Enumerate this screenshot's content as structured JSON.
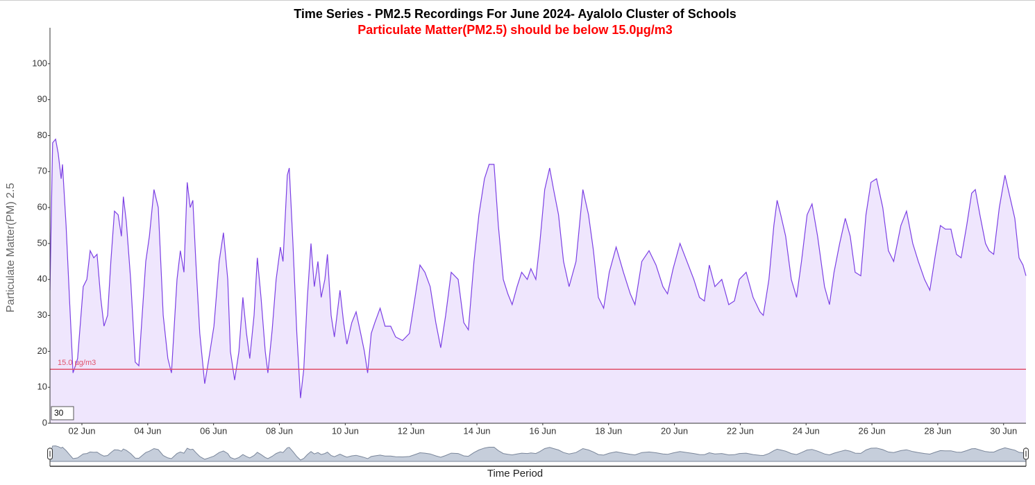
{
  "chart_data": {
    "type": "area",
    "title": "Time Series - PM2.5 Recordings For June 2024- Ayalolo Cluster of Schools",
    "subtitle": "Particulate Matter(PM2.5) should be below 15.0µg/m3",
    "y_label": "Particulate Matter(PM) 2.5",
    "x_label": "Time Period",
    "zoom_input": "30",
    "color": "#7b3fe4",
    "fill": "#efe6fd",
    "threshold": 15,
    "threshold_label": "15.0 µg/m3",
    "threshold_color": "#e0506a",
    "xlim": [
      1.03,
      30.68
    ],
    "ylim": [
      0,
      110
    ],
    "yticks": [
      0,
      10,
      20,
      30,
      40,
      50,
      60,
      70,
      80,
      90,
      100
    ],
    "xticks": [
      {
        "value": 2,
        "label": "02 Jun"
      },
      {
        "value": 4,
        "label": "04 Jun"
      },
      {
        "value": 6,
        "label": "06 Jun"
      },
      {
        "value": 8,
        "label": "08 Jun"
      },
      {
        "value": 10,
        "label": "10 Jun"
      },
      {
        "value": 12,
        "label": "12 Jun"
      },
      {
        "value": 14,
        "label": "14 Jun"
      },
      {
        "value": 16,
        "label": "16 Jun"
      },
      {
        "value": 18,
        "label": "18 Jun"
      },
      {
        "value": 20,
        "label": "20 Jun"
      },
      {
        "value": 22,
        "label": "22 Jun"
      },
      {
        "value": 24,
        "label": "24 Jun"
      },
      {
        "value": 26,
        "label": "26 Jun"
      },
      {
        "value": 28,
        "label": "28 Jun"
      },
      {
        "value": 30,
        "label": "30 Jun"
      }
    ],
    "x": [
      1.03,
      1.11,
      1.2,
      1.28,
      1.37,
      1.41,
      1.52,
      1.62,
      1.73,
      1.87,
      2.04,
      2.15,
      2.25,
      2.36,
      2.46,
      2.57,
      2.67,
      2.78,
      2.88,
      2.99,
      3.1,
      3.2,
      3.26,
      3.35,
      3.48,
      3.62,
      3.73,
      3.83,
      3.94,
      4.05,
      4.19,
      4.32,
      4.47,
      4.61,
      4.72,
      4.89,
      4.99,
      5.1,
      5.2,
      5.29,
      5.37,
      5.46,
      5.58,
      5.73,
      5.84,
      6.01,
      6.17,
      6.3,
      6.43,
      6.51,
      6.64,
      6.77,
      6.89,
      7.0,
      7.1,
      7.23,
      7.33,
      7.44,
      7.57,
      7.65,
      7.78,
      7.9,
      8.03,
      8.11,
      8.24,
      8.3,
      8.41,
      8.53,
      8.64,
      8.74,
      8.85,
      8.96,
      9.06,
      9.17,
      9.27,
      9.38,
      9.46,
      9.57,
      9.67,
      9.84,
      9.95,
      10.05,
      10.2,
      10.33,
      10.47,
      10.58,
      10.68,
      10.79,
      10.9,
      11.06,
      11.21,
      11.38,
      11.53,
      11.74,
      11.95,
      12.12,
      12.27,
      12.42,
      12.58,
      12.75,
      12.9,
      13.05,
      13.22,
      13.43,
      13.6,
      13.74,
      13.91,
      14.06,
      14.23,
      14.37,
      14.52,
      14.65,
      14.8,
      14.94,
      15.07,
      15.22,
      15.36,
      15.53,
      15.64,
      15.79,
      15.91,
      16.06,
      16.21,
      16.33,
      16.48,
      16.63,
      16.8,
      17.01,
      17.22,
      17.39,
      17.54,
      17.69,
      17.85,
      18.02,
      18.23,
      18.45,
      18.66,
      18.8,
      19.01,
      19.23,
      19.44,
      19.65,
      19.79,
      19.96,
      20.17,
      20.38,
      20.59,
      20.76,
      20.91,
      21.06,
      21.23,
      21.44,
      21.65,
      21.82,
      21.97,
      22.18,
      22.39,
      22.6,
      22.7,
      22.87,
      23.02,
      23.12,
      23.23,
      23.38,
      23.55,
      23.71,
      23.86,
      24.03,
      24.18,
      24.35,
      24.56,
      24.71,
      24.85,
      25.02,
      25.19,
      25.34,
      25.49,
      25.66,
      25.82,
      25.97,
      26.14,
      26.33,
      26.5,
      26.66,
      26.88,
      27.05,
      27.24,
      27.41,
      27.6,
      27.76,
      27.93,
      28.08,
      28.23,
      28.4,
      28.57,
      28.71,
      28.88,
      29.03,
      29.14,
      29.28,
      29.45,
      29.56,
      29.7,
      29.87,
      30.04,
      30.19,
      30.34,
      30.47,
      30.59,
      30.68
    ],
    "values": [
      37,
      78,
      79,
      75,
      68,
      72,
      55,
      35,
      14,
      18,
      38,
      40,
      48,
      46,
      47,
      35,
      27,
      30,
      45,
      59,
      58,
      52,
      63,
      56,
      40,
      17,
      16,
      30,
      45,
      52,
      65,
      60,
      30,
      18,
      14,
      40,
      48,
      42,
      67,
      60,
      62,
      45,
      25,
      11,
      17,
      27,
      45,
      53,
      40,
      20,
      12,
      20,
      35,
      25,
      18,
      30,
      46,
      35,
      20,
      14,
      26,
      40,
      49,
      45,
      69,
      71,
      50,
      25,
      7,
      15,
      35,
      50,
      38,
      45,
      35,
      40,
      47,
      30,
      24,
      37,
      28,
      22,
      28,
      31,
      25,
      20,
      14,
      25,
      28,
      32,
      27,
      27,
      24,
      23,
      25,
      35,
      44,
      42,
      38,
      28,
      21,
      30,
      42,
      40,
      28,
      26,
      45,
      58,
      68,
      72,
      72,
      55,
      40,
      36,
      33,
      38,
      42,
      40,
      43,
      40,
      50,
      65,
      71,
      65,
      58,
      45,
      38,
      45,
      65,
      58,
      48,
      35,
      32,
      42,
      49,
      42,
      36,
      33,
      45,
      48,
      44,
      38,
      36,
      43,
      50,
      45,
      40,
      35,
      34,
      44,
      38,
      40,
      33,
      34,
      40,
      42,
      35,
      31,
      30,
      40,
      55,
      62,
      58,
      52,
      40,
      35,
      45,
      58,
      61,
      52,
      38,
      33,
      42,
      50,
      57,
      52,
      42,
      41,
      58,
      67,
      68,
      60,
      48,
      45,
      55,
      59,
      50,
      45,
      40,
      37,
      47,
      55,
      54,
      54,
      47,
      46,
      55,
      64,
      65,
      58,
      50,
      48,
      47,
      60,
      69,
      63,
      57,
      46,
      44,
      41
    ]
  }
}
